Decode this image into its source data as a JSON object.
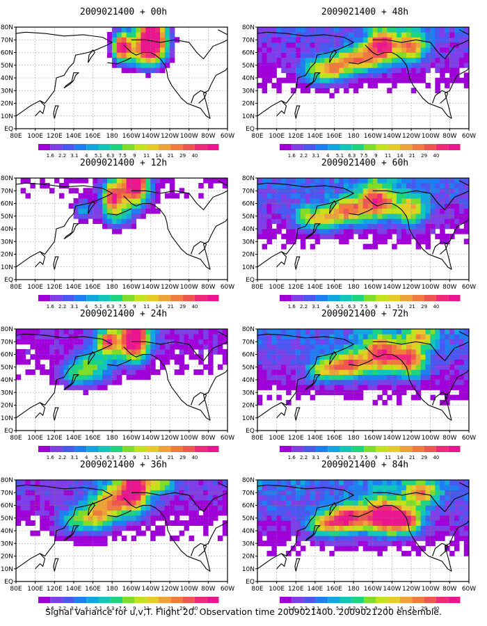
{
  "lat_labels": [
    "80N",
    "70N",
    "60N",
    "50N",
    "40N",
    "30N",
    "20N",
    "10N",
    "EQ"
  ],
  "lon_labels": [
    "80E",
    "100E",
    "120E",
    "140E",
    "160E",
    "180",
    "160W",
    "140W",
    "120W",
    "100W",
    "80W",
    "60W"
  ],
  "colorbar": {
    "colors": [
      "#9f00d7",
      "#7f3fe6",
      "#4b58f0",
      "#1e7ef2",
      "#12a7df",
      "#12c6b9",
      "#1fd47f",
      "#7fdd2a",
      "#c3e21e",
      "#e6cc29",
      "#eca33a",
      "#ef7c3e",
      "#f05650",
      "#ef2a78",
      "#e9168f"
    ],
    "labels": [
      "1.6",
      "2.2",
      "3.1",
      "4",
      "5.1",
      "6.3",
      "7.5",
      "9",
      "11",
      "14",
      "21",
      "29",
      "40"
    ]
  },
  "panels": [
    {
      "title": "2009021400 + 00h",
      "coverage": 0.15,
      "intensity": 0.95,
      "blobs": [
        [
          190,
          125,
          10,
          12,
          0.9
        ],
        [
          222,
          135,
          16,
          18,
          1.0
        ],
        [
          215,
          120,
          22,
          14,
          0.6
        ],
        [
          205,
          150,
          12,
          8,
          0.5
        ],
        [
          215,
          165,
          6,
          5,
          0.4
        ],
        [
          170,
          160,
          6,
          5,
          0.3
        ]
      ]
    },
    {
      "title": "2009021400 + 12h",
      "coverage": 0.4,
      "intensity": 0.75,
      "blobs": [
        [
          180,
          125,
          10,
          10,
          0.8
        ],
        [
          205,
          138,
          12,
          16,
          0.9
        ],
        [
          196,
          132,
          22,
          16,
          0.6
        ],
        [
          185,
          110,
          16,
          10,
          0.5
        ],
        [
          150,
          115,
          10,
          8,
          0.4
        ],
        [
          210,
          160,
          10,
          8,
          0.3
        ]
      ]
    },
    {
      "title": "2009021400 + 24h",
      "coverage": 0.55,
      "intensity": 0.72,
      "blobs": [
        [
          175,
          130,
          10,
          8,
          0.7
        ],
        [
          205,
          135,
          12,
          18,
          0.9
        ],
        [
          195,
          130,
          24,
          16,
          0.6
        ],
        [
          160,
          110,
          20,
          14,
          0.5
        ],
        [
          230,
          150,
          12,
          8,
          0.4
        ],
        [
          140,
          105,
          16,
          10,
          0.4
        ]
      ]
    },
    {
      "title": "2009021400 + 36h",
      "coverage": 0.65,
      "intensity": 0.78,
      "blobs": [
        [
          205,
          135,
          14,
          18,
          0.9
        ],
        [
          185,
          125,
          20,
          14,
          0.7
        ],
        [
          165,
          112,
          18,
          12,
          0.6
        ],
        [
          230,
          140,
          14,
          10,
          0.5
        ],
        [
          140,
          108,
          18,
          10,
          0.4
        ]
      ]
    },
    {
      "title": "2009021400 + 48h",
      "coverage": 0.7,
      "intensity": 0.8,
      "blobs": [
        [
          210,
          125,
          16,
          14,
          0.9
        ],
        [
          185,
          115,
          18,
          10,
          0.7
        ],
        [
          160,
          108,
          18,
          10,
          0.6
        ],
        [
          240,
          125,
          16,
          12,
          0.7
        ],
        [
          140,
          105,
          18,
          10,
          0.4
        ]
      ]
    },
    {
      "title": "2009021400 + 60h",
      "coverage": 0.78,
      "intensity": 0.8,
      "blobs": [
        [
          205,
          122,
          18,
          14,
          0.85
        ],
        [
          175,
          115,
          18,
          10,
          0.7
        ],
        [
          240,
          115,
          16,
          12,
          0.6
        ],
        [
          150,
          108,
          18,
          10,
          0.5
        ],
        [
          130,
          110,
          14,
          8,
          0.4
        ]
      ]
    },
    {
      "title": "2009021400 + 72h",
      "coverage": 0.82,
      "intensity": 0.82,
      "blobs": [
        [
          210,
          120,
          20,
          14,
          0.85
        ],
        [
          175,
          112,
          18,
          10,
          0.75
        ],
        [
          240,
          115,
          16,
          12,
          0.7
        ],
        [
          150,
          108,
          18,
          10,
          0.5
        ],
        [
          250,
          135,
          14,
          10,
          0.5
        ]
      ]
    },
    {
      "title": "2009021400 + 84h",
      "coverage": 0.85,
      "intensity": 0.88,
      "blobs": [
        [
          210,
          112,
          20,
          14,
          0.9
        ],
        [
          175,
          110,
          18,
          10,
          0.8
        ],
        [
          235,
          108,
          16,
          10,
          0.75
        ],
        [
          150,
          105,
          18,
          10,
          0.55
        ],
        [
          250,
          130,
          16,
          10,
          0.6
        ]
      ]
    }
  ],
  "footer": "Signal Variance for u,v,T. Flight 20. Observation time 2009021400. 2009021200 ensemble."
}
